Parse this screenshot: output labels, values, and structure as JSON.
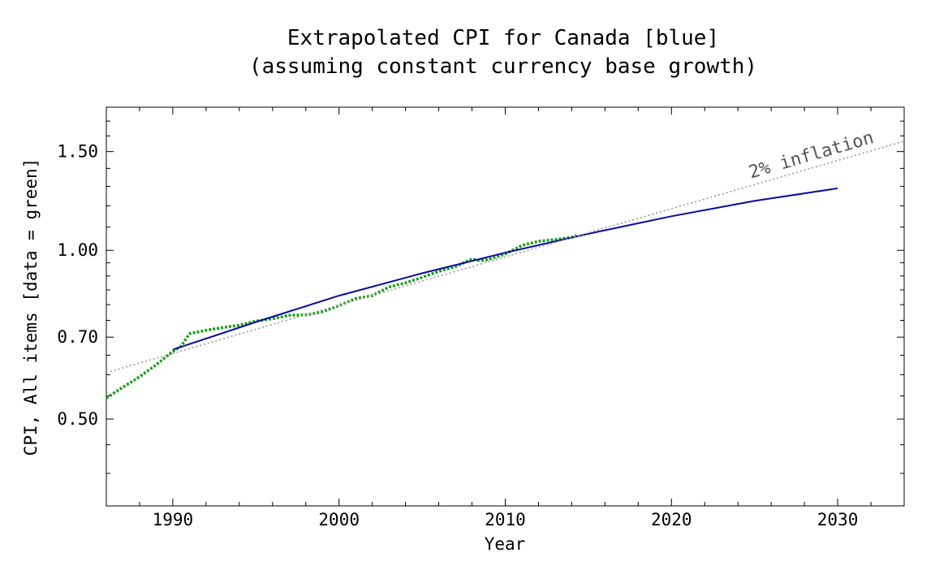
{
  "chart_data": {
    "type": "line",
    "title_line1": "Extrapolated CPI for Canada [blue]",
    "title_line2": "(assuming constant currency base growth)",
    "xlabel": "Year",
    "ylabel": "CPI, All items [data = green]",
    "y_scale": "log",
    "xlim": [
      1986,
      2034
    ],
    "ylim": [
      0.35,
      1.8
    ],
    "x_ticks": [
      1990,
      2000,
      2010,
      2020,
      2030
    ],
    "x_tick_labels": [
      "1990",
      "2000",
      "2010",
      "2020",
      "2030"
    ],
    "y_ticks": [
      0.5,
      0.7,
      1.0,
      1.5
    ],
    "y_tick_labels": [
      "0.50",
      "0.70",
      "1.00",
      "1.50"
    ],
    "y_minor_ticks": [
      0.4,
      0.45,
      0.55,
      0.6,
      0.65,
      0.75,
      0.8,
      0.85,
      0.9,
      0.95,
      1.1,
      1.2,
      1.3,
      1.4,
      1.6,
      1.7
    ],
    "grid": false,
    "annotation": "2% inflation",
    "series": [
      {
        "role": "data",
        "color": "#1aa01a",
        "style": "dotted",
        "x": [
          1986,
          1987,
          1988,
          1989,
          1990,
          1990.5,
          1991,
          1991.5,
          1992,
          1993,
          1994,
          1995,
          1996,
          1997,
          1998,
          1999,
          2000,
          2001,
          2002,
          2002.5,
          2003,
          2004,
          2005,
          2006,
          2007,
          2008,
          2008.5,
          2009,
          2010,
          2011,
          2012,
          2013,
          2014,
          2014.3
        ],
        "y": [
          0.545,
          0.57,
          0.595,
          0.625,
          0.66,
          0.675,
          0.71,
          0.715,
          0.72,
          0.728,
          0.735,
          0.748,
          0.755,
          0.766,
          0.767,
          0.777,
          0.797,
          0.82,
          0.83,
          0.845,
          0.86,
          0.875,
          0.895,
          0.917,
          0.935,
          0.965,
          0.958,
          0.963,
          0.985,
          1.02,
          1.038,
          1.045,
          1.055,
          1.062
        ]
      },
      {
        "role": "extrapolated",
        "color": "#0a0aa0",
        "style": "solid",
        "x": [
          1990,
          1995,
          2000,
          2005,
          2010,
          2015,
          2020,
          2025,
          2030
        ],
        "y": [
          0.665,
          0.745,
          0.83,
          0.91,
          0.99,
          1.07,
          1.15,
          1.225,
          1.29
        ]
      },
      {
        "role": "reference",
        "color": "#999999",
        "style": "dotted",
        "x": [
          1986,
          2034
        ],
        "y": [
          0.605,
          1.565
        ]
      }
    ]
  }
}
